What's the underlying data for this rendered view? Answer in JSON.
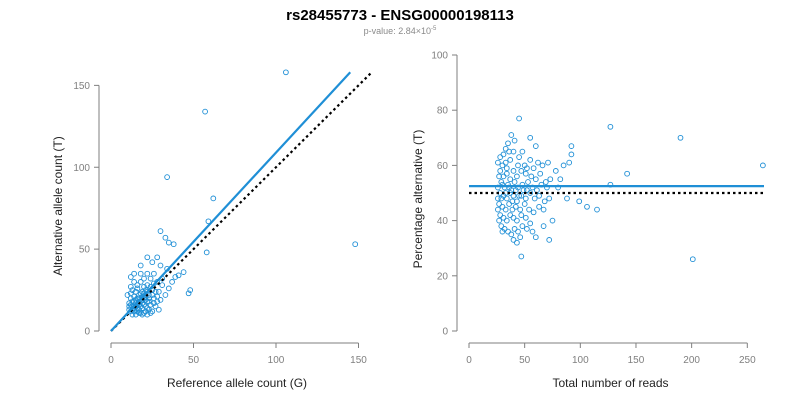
{
  "title": "rs28455773 - ENSG00000198113",
  "subtitle_prefix": "p-value: 2.84×10",
  "subtitle_exponent": "-5",
  "colors": {
    "points": "#1f8fd6",
    "fit_line": "#1f8fd6",
    "reference_line": "#000000",
    "axis": "#7f7f7f",
    "title": "#000000",
    "subtitle": "#8a8a8a"
  },
  "chart_data": [
    {
      "type": "scatter",
      "title": "",
      "xlabel": "Reference allele count (G)",
      "ylabel": "Alternative allele count (T)",
      "xlim": [
        0,
        160
      ],
      "ylim": [
        0,
        160
      ],
      "x_ticks": [
        0,
        50,
        100,
        150
      ],
      "y_ticks": [
        0,
        50,
        100,
        150
      ],
      "grid": false,
      "fit_line": {
        "x": [
          0,
          145
        ],
        "y": [
          0,
          158
        ]
      },
      "reference_line": {
        "x": [
          0,
          158
        ],
        "y": [
          0,
          158
        ]
      },
      "points": [
        [
          106,
          158
        ],
        [
          57,
          134
        ],
        [
          34,
          94
        ],
        [
          62,
          81
        ],
        [
          148,
          53
        ],
        [
          59,
          67
        ],
        [
          58,
          48
        ],
        [
          30,
          61
        ],
        [
          33,
          57
        ],
        [
          35,
          54
        ],
        [
          38,
          53
        ],
        [
          48,
          25
        ],
        [
          47,
          23
        ],
        [
          44,
          36
        ],
        [
          41,
          34
        ],
        [
          28,
          45
        ],
        [
          22,
          45
        ],
        [
          25,
          42
        ],
        [
          30,
          40
        ],
        [
          34,
          38
        ],
        [
          18,
          40
        ],
        [
          37,
          30
        ],
        [
          26,
          35
        ],
        [
          22,
          35
        ],
        [
          18,
          35
        ],
        [
          14,
          35
        ],
        [
          20,
          32
        ],
        [
          24,
          32
        ],
        [
          28,
          30
        ],
        [
          31,
          28
        ],
        [
          12,
          33
        ],
        [
          14,
          30
        ],
        [
          16,
          28
        ],
        [
          18,
          30
        ],
        [
          22,
          28
        ],
        [
          25,
          25
        ],
        [
          29,
          24
        ],
        [
          33,
          22
        ],
        [
          13,
          25
        ],
        [
          15,
          24
        ],
        [
          17,
          22
        ],
        [
          19,
          24
        ],
        [
          21,
          25
        ],
        [
          23,
          22
        ],
        [
          26,
          20
        ],
        [
          28,
          18
        ],
        [
          12,
          20
        ],
        [
          14,
          18
        ],
        [
          16,
          20
        ],
        [
          18,
          18
        ],
        [
          20,
          20
        ],
        [
          22,
          18
        ],
        [
          24,
          16
        ],
        [
          27,
          15
        ],
        [
          13,
          15
        ],
        [
          15,
          15
        ],
        [
          17,
          16
        ],
        [
          19,
          14
        ],
        [
          21,
          15
        ],
        [
          23,
          13
        ],
        [
          25,
          12
        ],
        [
          29,
          13
        ],
        [
          12,
          12
        ],
        [
          14,
          12
        ],
        [
          16,
          12
        ],
        [
          18,
          11
        ],
        [
          20,
          11
        ],
        [
          22,
          10
        ],
        [
          24,
          11
        ],
        [
          15,
          10
        ],
        [
          13,
          10
        ],
        [
          17,
          13
        ],
        [
          19,
          17
        ],
        [
          21,
          19
        ],
        [
          23,
          20
        ],
        [
          11,
          17
        ],
        [
          11,
          13
        ],
        [
          12,
          27
        ],
        [
          16,
          26
        ],
        [
          20,
          27
        ],
        [
          24,
          27
        ],
        [
          26,
          29
        ],
        [
          31,
          32
        ],
        [
          35,
          26
        ],
        [
          39,
          33
        ],
        [
          10,
          22
        ],
        [
          12,
          23
        ],
        [
          14,
          21
        ],
        [
          16,
          14
        ],
        [
          18,
          23
        ],
        [
          20,
          23
        ],
        [
          21,
          12
        ],
        [
          19,
          10
        ],
        [
          17,
          11
        ],
        [
          13,
          18
        ],
        [
          15,
          17
        ],
        [
          17,
          18
        ],
        [
          19,
          21
        ],
        [
          22,
          24
        ],
        [
          25,
          22
        ],
        [
          28,
          21
        ],
        [
          30,
          19
        ],
        [
          11,
          15
        ],
        [
          13,
          13
        ],
        [
          14,
          15
        ],
        [
          16,
          16
        ],
        [
          18,
          15
        ],
        [
          20,
          16
        ],
        [
          22,
          14
        ],
        [
          26,
          17
        ],
        [
          12,
          16
        ],
        [
          14,
          14
        ],
        [
          15,
          19
        ],
        [
          17,
          20
        ],
        [
          19,
          19
        ],
        [
          21,
          21
        ],
        [
          23,
          18
        ],
        [
          27,
          24
        ]
      ]
    },
    {
      "type": "scatter",
      "title": "",
      "xlabel": "Total number of reads",
      "ylabel": "Percentage alternative (T)",
      "xlim": [
        0,
        265
      ],
      "ylim": [
        0,
        100
      ],
      "x_ticks": [
        0,
        50,
        100,
        150,
        200,
        250
      ],
      "y_ticks": [
        0,
        20,
        40,
        60,
        80,
        100
      ],
      "grid": false,
      "fit_line": {
        "x": [
          0,
          265
        ],
        "y": [
          52.5,
          52.5
        ]
      },
      "reference_line": {
        "x": [
          0,
          265
        ],
        "y": [
          50,
          50
        ]
      },
      "points": [
        [
          45,
          77
        ],
        [
          127,
          74
        ],
        [
          190,
          70
        ],
        [
          201,
          26
        ],
        [
          264,
          60
        ],
        [
          47,
          27
        ],
        [
          38,
          71
        ],
        [
          41,
          69
        ],
        [
          35,
          68
        ],
        [
          33,
          66
        ],
        [
          55,
          70
        ],
        [
          60,
          67
        ],
        [
          92,
          67
        ],
        [
          92,
          64
        ],
        [
          28,
          63
        ],
        [
          30,
          60
        ],
        [
          33,
          61
        ],
        [
          37,
          62
        ],
        [
          40,
          65
        ],
        [
          45,
          63
        ],
        [
          50,
          60
        ],
        [
          55,
          62
        ],
        [
          62,
          61
        ],
        [
          66,
          60
        ],
        [
          71,
          61
        ],
        [
          78,
          58
        ],
        [
          85,
          60
        ],
        [
          90,
          61
        ],
        [
          142,
          57
        ],
        [
          127,
          53
        ],
        [
          28,
          58
        ],
        [
          31,
          56
        ],
        [
          34,
          57
        ],
        [
          37,
          55
        ],
        [
          40,
          58
        ],
        [
          43,
          56
        ],
        [
          47,
          58
        ],
        [
          51,
          57
        ],
        [
          56,
          56
        ],
        [
          60,
          55
        ],
        [
          64,
          57
        ],
        [
          69,
          54
        ],
        [
          73,
          55
        ],
        [
          29,
          54
        ],
        [
          32,
          52
        ],
        [
          35,
          53
        ],
        [
          38,
          51
        ],
        [
          41,
          54
        ],
        [
          44,
          52
        ],
        [
          48,
          53
        ],
        [
          52,
          51
        ],
        [
          57,
          52
        ],
        [
          61,
          51
        ],
        [
          65,
          53
        ],
        [
          70,
          52
        ],
        [
          28,
          50
        ],
        [
          31,
          49
        ],
        [
          34,
          48
        ],
        [
          37,
          50
        ],
        [
          40,
          49
        ],
        [
          43,
          47
        ],
        [
          47,
          49
        ],
        [
          51,
          48
        ],
        [
          55,
          50
        ],
        [
          59,
          48
        ],
        [
          63,
          49
        ],
        [
          68,
          47
        ],
        [
          72,
          48
        ],
        [
          80,
          52
        ],
        [
          88,
          48
        ],
        [
          27,
          46
        ],
        [
          30,
          45
        ],
        [
          33,
          44
        ],
        [
          36,
          46
        ],
        [
          39,
          44
        ],
        [
          42,
          45
        ],
        [
          46,
          44
        ],
        [
          50,
          46
        ],
        [
          54,
          44
        ],
        [
          58,
          43
        ],
        [
          63,
          45
        ],
        [
          67,
          44
        ],
        [
          28,
          42
        ],
        [
          31,
          41
        ],
        [
          34,
          40
        ],
        [
          37,
          42
        ],
        [
          40,
          41
        ],
        [
          43,
          40
        ],
        [
          47,
          42
        ],
        [
          51,
          41
        ],
        [
          55,
          39
        ],
        [
          29,
          38
        ],
        [
          32,
          37
        ],
        [
          35,
          36
        ],
        [
          38,
          35
        ],
        [
          41,
          37
        ],
        [
          44,
          36
        ],
        [
          48,
          38
        ],
        [
          52,
          37
        ],
        [
          57,
          36
        ],
        [
          40,
          33
        ],
        [
          43,
          32
        ],
        [
          46,
          34
        ],
        [
          60,
          34
        ],
        [
          67,
          38
        ],
        [
          106,
          45
        ],
        [
          115,
          44
        ],
        [
          75,
          40
        ],
        [
          82,
          55
        ],
        [
          99,
          47
        ],
        [
          72,
          33
        ],
        [
          26,
          52
        ],
        [
          26,
          48
        ],
        [
          27,
          56
        ],
        [
          30,
          53
        ],
        [
          33,
          50
        ],
        [
          36,
          52
        ],
        [
          39,
          47
        ],
        [
          42,
          51
        ],
        [
          45,
          49
        ],
        [
          49,
          51
        ],
        [
          53,
          54
        ],
        [
          26,
          44
        ],
        [
          29,
          48
        ],
        [
          34,
          59
        ],
        [
          44,
          60
        ],
        [
          48,
          65
        ],
        [
          52,
          59
        ],
        [
          58,
          59
        ],
        [
          31,
          64
        ],
        [
          36,
          65
        ],
        [
          26,
          61
        ],
        [
          27,
          40
        ],
        [
          30,
          36
        ]
      ]
    }
  ]
}
